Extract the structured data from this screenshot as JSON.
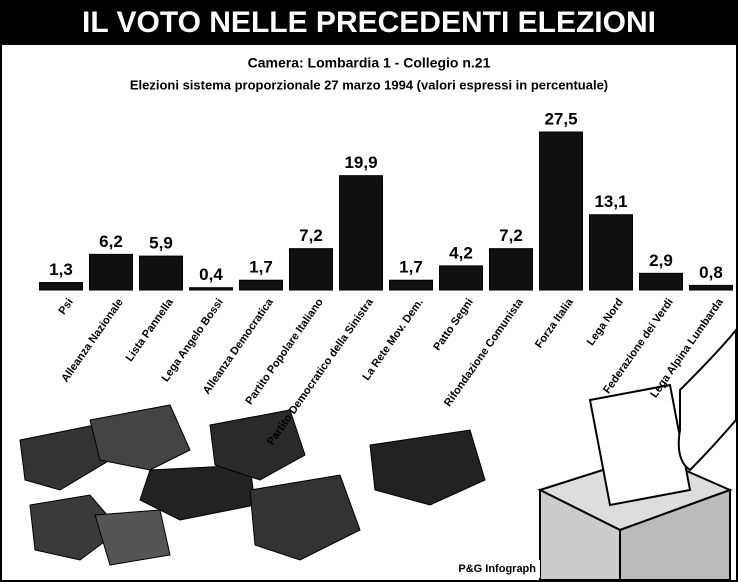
{
  "chart_data": {
    "type": "bar",
    "title": "IL VOTO NELLE PRECEDENTI ELEZIONI",
    "subtitle": "Camera: Lombardia 1 - Collegio n.21",
    "description": "Elezioni sistema proporzionale 27 marzo 1994 (valori espressi in percentuale)",
    "credit": "P&G Infograph",
    "categories": [
      "Psi",
      "Alleanza Nazionale",
      "Lista Pannella",
      "Lega Angelo Bossi",
      "Alleanza Democratica",
      "Partito Popolare Italiano",
      "Partito Democratico della Sinistra",
      "La Rete Mov. Dem.",
      "Patto Segni",
      "Rifondazione Comunista",
      "Forza Italia",
      "Lega Nord",
      "Federazione dei Verdi",
      "Lega Alpina Lumbarda"
    ],
    "values": [
      1.3,
      6.2,
      5.9,
      0.4,
      1.7,
      7.2,
      19.9,
      1.7,
      4.2,
      7.2,
      27.5,
      13.1,
      2.9,
      0.8
    ],
    "value_labels": [
      "1,3",
      "6,2",
      "5,9",
      "0,4",
      "1,7",
      "7,2",
      "19,9",
      "1,7",
      "4,2",
      "7,2",
      "27,5",
      "13,1",
      "2,9",
      "0,8"
    ],
    "color": "#111111"
  }
}
